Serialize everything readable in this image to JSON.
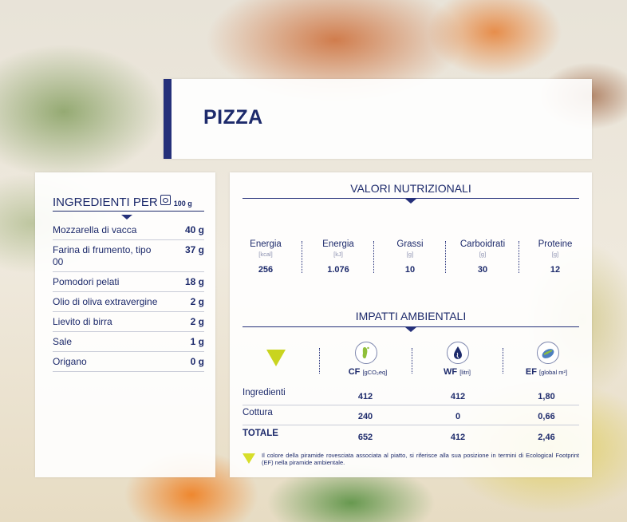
{
  "title": "PIZZA",
  "ingredients": {
    "header": "INGREDIENTI PER",
    "per_qty": "100 g",
    "items": [
      {
        "name": "Mozzarella di vacca",
        "amount": "40 g"
      },
      {
        "name": "Farina di frumento, tipo 00",
        "amount": "37 g"
      },
      {
        "name": "Pomodori pelati",
        "amount": "18 g"
      },
      {
        "name": "Olio di oliva extravergine",
        "amount": "2 g"
      },
      {
        "name": "Lievito di birra",
        "amount": "2 g"
      },
      {
        "name": "Sale",
        "amount": "1 g"
      },
      {
        "name": "Origano",
        "amount": "0 g"
      }
    ]
  },
  "nutrition": {
    "title": "VALORI NUTRIZIONALI",
    "columns": [
      {
        "label": "Energia",
        "unit": "[kcal]",
        "value": "256"
      },
      {
        "label": "Energia",
        "unit": "[kJ]",
        "value": "1.076"
      },
      {
        "label": "Grassi",
        "unit": "[g]",
        "value": "10"
      },
      {
        "label": "Carboidrati",
        "unit": "[g]",
        "value": "30"
      },
      {
        "label": "Proteine",
        "unit": "[g]",
        "value": "12"
      }
    ]
  },
  "environment": {
    "title": "IMPATTI AMBIENTALI",
    "headers": [
      {
        "abbr": "CF",
        "unit": "[gCO₂eq]",
        "icon": "footprint-icon"
      },
      {
        "abbr": "WF",
        "unit": "[litri]",
        "icon": "water-drop-icon"
      },
      {
        "abbr": "EF",
        "unit": "[global m²]",
        "icon": "globe-icon"
      }
    ],
    "rows": [
      {
        "label": "Ingredienti",
        "cf": "412",
        "wf": "412",
        "ef": "1,80"
      },
      {
        "label": "Cottura",
        "cf": "240",
        "wf": "0",
        "ef": "0,66"
      },
      {
        "label": "TOTALE",
        "cf": "652",
        "wf": "412",
        "ef": "2,46"
      }
    ],
    "pyramid_color": "#c9d41f",
    "note": "Il colore della piramide rovesciata associata al piatto, si riferisce alla sua posizione in termini di Ecological Footprint (EF) nella piramide ambientale."
  }
}
